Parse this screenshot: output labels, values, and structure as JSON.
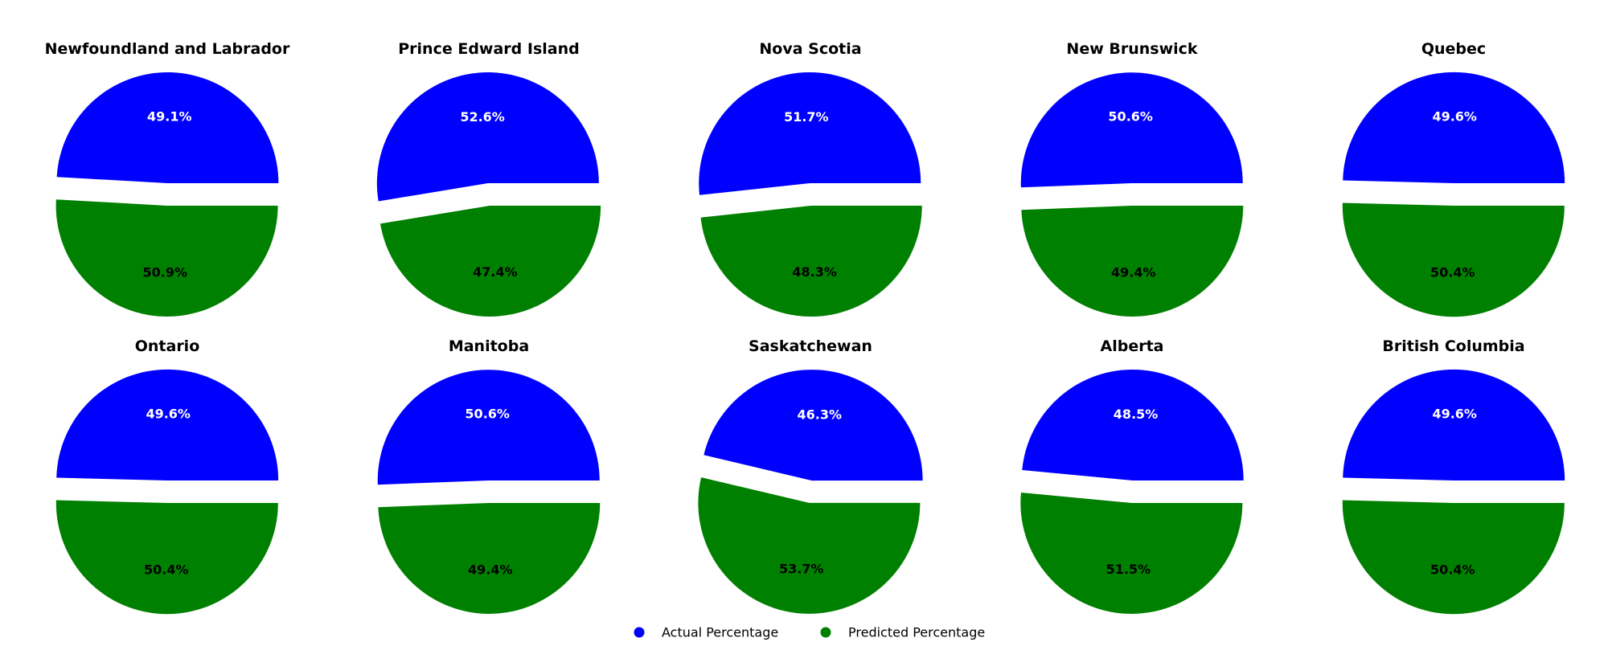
{
  "chart_data": {
    "type": "pie",
    "layout": "grid 2 rows x 5 columns",
    "legend": {
      "placement": "bottom-center",
      "entries": [
        {
          "label": "Actual Percentage",
          "color": "#0000ff"
        },
        {
          "label": "Predicted Percentage",
          "color": "#008000"
        }
      ]
    },
    "colors": {
      "actual": "#0000ff",
      "predicted": "#008000",
      "actual_label": "#ffffff",
      "predicted_label": "#000000"
    },
    "charts": [
      {
        "title": "Newfoundland and Labrador",
        "values": [
          49.1,
          50.9
        ],
        "labels": [
          "49.1%",
          "50.9%"
        ]
      },
      {
        "title": "Prince Edward Island",
        "values": [
          52.6,
          47.4
        ],
        "labels": [
          "52.6%",
          "47.4%"
        ]
      },
      {
        "title": "Nova Scotia",
        "values": [
          51.7,
          48.3
        ],
        "labels": [
          "51.7%",
          "48.3%"
        ]
      },
      {
        "title": "New Brunswick",
        "values": [
          50.6,
          49.4
        ],
        "labels": [
          "50.6%",
          "49.4%"
        ]
      },
      {
        "title": "Quebec",
        "values": [
          49.6,
          50.4
        ],
        "labels": [
          "49.6%",
          "50.4%"
        ]
      },
      {
        "title": "Ontario",
        "values": [
          49.6,
          50.4
        ],
        "labels": [
          "49.6%",
          "50.4%"
        ]
      },
      {
        "title": "Manitoba",
        "values": [
          50.6,
          49.4
        ],
        "labels": [
          "50.6%",
          "49.4%"
        ]
      },
      {
        "title": "Saskatchewan",
        "values": [
          46.3,
          53.7
        ],
        "labels": [
          "46.3%",
          "53.7%"
        ]
      },
      {
        "title": "Alberta",
        "values": [
          48.5,
          51.5
        ],
        "labels": [
          "48.5%",
          "51.5%"
        ]
      },
      {
        "title": "British Columbia",
        "values": [
          49.6,
          50.4
        ],
        "labels": [
          "49.6%",
          "50.4%"
        ]
      }
    ]
  }
}
